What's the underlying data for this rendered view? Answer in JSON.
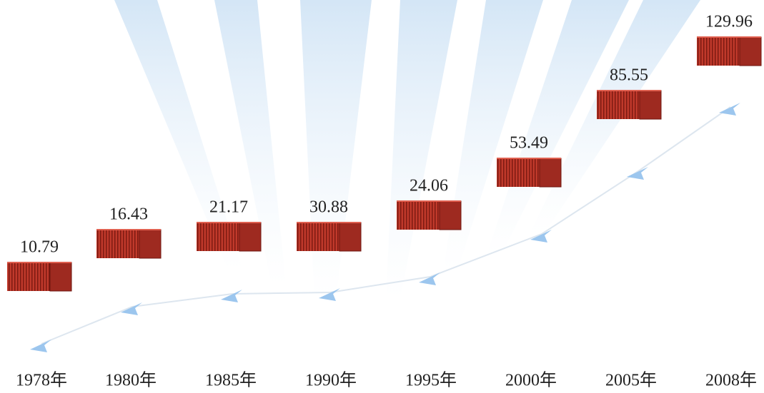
{
  "chart_data": {
    "type": "pictogram",
    "categories": [
      "1978年",
      "1980年",
      "1985年",
      "1990年",
      "1995年",
      "2000年",
      "2005年",
      "2008年"
    ],
    "values": [
      10.79,
      16.43,
      21.17,
      30.88,
      24.06,
      53.49,
      85.55,
      129.96
    ],
    "color": "#c0392b"
  }
}
